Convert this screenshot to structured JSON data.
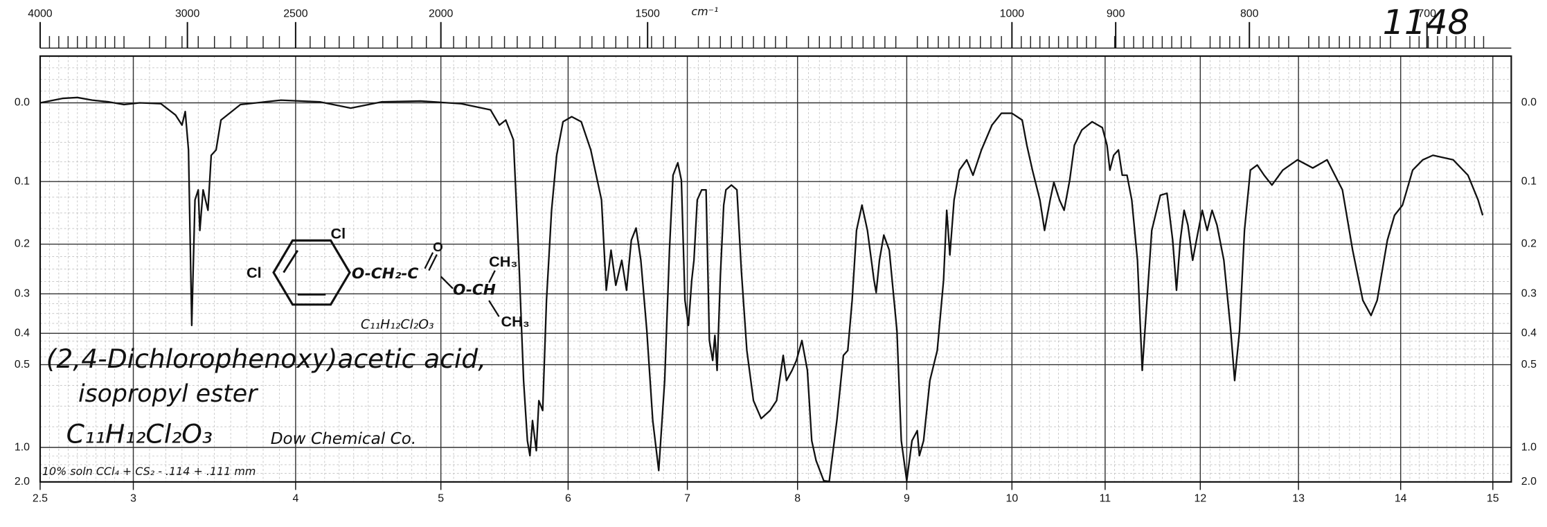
{
  "chart_data": {
    "type": "line",
    "color": "#111111",
    "grid": true,
    "yscale": "absorbance",
    "x": [
      2.5,
      2.62,
      2.7,
      2.78,
      2.87,
      2.95,
      3.04,
      3.17,
      3.26,
      3.3,
      3.32,
      3.34,
      3.36,
      3.38,
      3.4,
      3.41,
      3.43,
      3.46,
      3.48,
      3.51,
      3.54,
      3.66,
      3.91,
      4.17,
      4.38,
      4.59,
      4.86,
      5.16,
      5.39,
      5.46,
      5.51,
      5.57,
      5.61,
      5.65,
      5.68,
      5.7,
      5.72,
      5.75,
      5.77,
      5.8,
      5.83,
      5.87,
      5.91,
      5.96,
      6.03,
      6.11,
      6.19,
      6.28,
      6.32,
      6.36,
      6.4,
      6.45,
      6.49,
      6.53,
      6.57,
      6.61,
      6.66,
      6.71,
      6.76,
      6.81,
      6.85,
      6.88,
      6.92,
      6.95,
      6.98,
      7.01,
      7.04,
      7.06,
      7.09,
      7.13,
      7.17,
      7.2,
      7.23,
      7.25,
      7.27,
      7.3,
      7.33,
      7.35,
      7.4,
      7.45,
      7.49,
      7.54,
      7.6,
      7.67,
      7.75,
      7.81,
      7.87,
      7.9,
      7.95,
      7.99,
      8.04,
      8.09,
      8.13,
      8.17,
      8.24,
      8.29,
      8.36,
      8.42,
      8.46,
      8.5,
      8.54,
      8.59,
      8.64,
      8.7,
      8.72,
      8.75,
      8.79,
      8.84,
      8.91,
      8.95,
      9.0,
      9.05,
      9.1,
      9.12,
      9.16,
      9.22,
      9.29,
      9.35,
      9.38,
      9.41,
      9.45,
      9.5,
      9.57,
      9.63,
      9.71,
      9.81,
      9.9,
      10.0,
      10.11,
      10.16,
      10.22,
      10.3,
      10.35,
      10.41,
      10.45,
      10.51,
      10.56,
      10.62,
      10.67,
      10.75,
      10.86,
      10.97,
      11.02,
      11.05,
      11.09,
      11.14,
      11.18,
      11.23,
      11.28,
      11.34,
      11.39,
      11.44,
      11.49,
      11.58,
      11.65,
      11.71,
      11.75,
      11.79,
      11.83,
      11.87,
      11.92,
      11.97,
      12.02,
      12.07,
      12.12,
      12.17,
      12.24,
      12.31,
      12.35,
      12.4,
      12.45,
      12.51,
      12.58,
      12.65,
      12.73,
      12.84,
      12.99,
      13.14,
      13.28,
      13.43,
      13.53,
      13.63,
      13.71,
      13.77,
      13.87,
      13.94,
      14.02,
      14.13,
      14.24,
      14.35,
      14.57,
      14.73,
      14.84,
      14.89
    ],
    "values": [
      0,
      -0.005,
      -0.006,
      -0.003,
      -0.001,
      0.002,
      0,
      0.001,
      0.014,
      0.026,
      0.01,
      0.057,
      0.378,
      0.127,
      0.112,
      0.176,
      0.112,
      0.143,
      0.064,
      0.057,
      0.02,
      0.002,
      -0.003,
      -0.001,
      0.006,
      -0.001,
      -0.002,
      0.001,
      0.008,
      0.026,
      0.02,
      0.044,
      0.211,
      0.561,
      0.929,
      1.105,
      0.769,
      1.038,
      0.653,
      0.707,
      0.315,
      0.143,
      0.064,
      0.022,
      0.016,
      0.022,
      0.057,
      0.127,
      0.292,
      0.211,
      0.281,
      0.23,
      0.292,
      0.193,
      0.172,
      0.23,
      0.392,
      0.769,
      1.4,
      0.561,
      0.211,
      0.091,
      0.074,
      0.098,
      0.315,
      0.378,
      0.27,
      0.23,
      0.127,
      0.112,
      0.112,
      0.421,
      0.485,
      0.406,
      0.521,
      0.26,
      0.135,
      0.112,
      0.105,
      0.112,
      0.25,
      0.452,
      0.653,
      0.756,
      0.707,
      0.653,
      0.468,
      0.561,
      0.521,
      0.485,
      0.421,
      0.521,
      0.929,
      1.184,
      1.883,
      1.95,
      0.769,
      0.468,
      0.452,
      0.315,
      0.176,
      0.135,
      0.176,
      0.27,
      0.297,
      0.23,
      0.184,
      0.211,
      0.392,
      0.929,
      1.883,
      0.929,
      0.842,
      1.105,
      0.929,
      0.561,
      0.452,
      0.27,
      0.143,
      0.22,
      0.127,
      0.084,
      0.07,
      0.091,
      0.057,
      0.026,
      0.012,
      0.012,
      0.02,
      0.051,
      0.084,
      0.127,
      0.176,
      0.127,
      0.101,
      0.127,
      0.143,
      0.098,
      0.051,
      0.032,
      0.022,
      0.029,
      0.051,
      0.084,
      0.064,
      0.057,
      0.091,
      0.091,
      0.127,
      0.23,
      0.521,
      0.315,
      0.176,
      0.12,
      0.117,
      0.193,
      0.292,
      0.193,
      0.143,
      0.167,
      0.23,
      0.184,
      0.143,
      0.176,
      0.143,
      0.167,
      0.23,
      0.392,
      0.561,
      0.392,
      0.176,
      0.084,
      0.077,
      0.091,
      0.105,
      0.084,
      0.07,
      0.081,
      0.07,
      0.112,
      0.211,
      0.315,
      0.352,
      0.315,
      0.193,
      0.151,
      0.135,
      0.084,
      0.07,
      0.064,
      0.07,
      0.091,
      0.127,
      0.151
    ],
    "xlim": [
      2.5,
      15.2
    ],
    "xticks": [
      2.5,
      3,
      4,
      5,
      6,
      7,
      8,
      9,
      10,
      11,
      12,
      13,
      14,
      15
    ],
    "ylim": [
      -0.05,
      2
    ],
    "yticks": [
      {
        "value": 0,
        "label": "0.0"
      },
      0.1,
      0.2,
      0.3,
      0.4,
      0.5,
      {
        "value": 1,
        "label": "1.0"
      },
      {
        "value": 2,
        "label": "2.0"
      }
    ],
    "x2ticks": [
      4000,
      3000,
      2500,
      2000,
      1500,
      1000,
      900,
      800,
      700
    ],
    "x2label": "cm⁻¹",
    "spectrum_number": "1148",
    "title": "(2,4-Dichlorophenoxy)acetic acid,",
    "subtitle": "isopropyl ester",
    "formula": "C₁₁H₁₂Cl₂O₃",
    "source": "Dow Chemical Co.",
    "conditions": "10% soln CCl₄ + CS₂ - .114 + .111 mm",
    "structure": {
      "cl_left": "Cl",
      "cl_top": "Cl",
      "chain": "O-CH₂-C",
      "carbonyl_o": "O",
      "ester": "O-CH",
      "methyl_top": "CH₃",
      "methyl_bottom": "CH₃",
      "formula": "C₁₁H₁₂Cl₂O₃"
    }
  }
}
